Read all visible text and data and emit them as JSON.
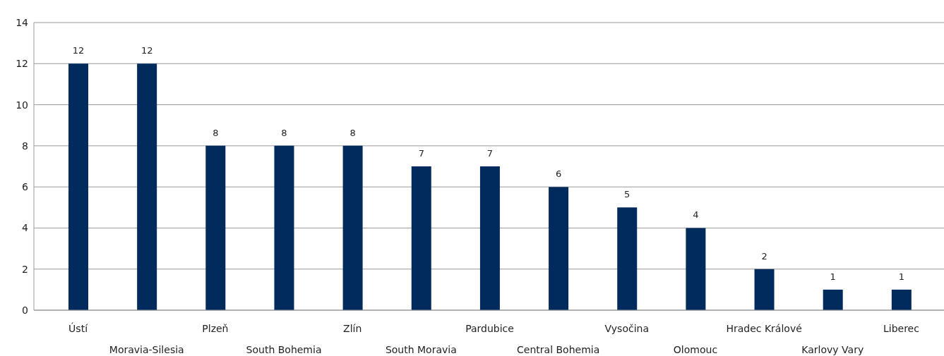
{
  "chart_data": {
    "type": "bar",
    "categories": [
      "Ústí",
      "Moravia-Silesia",
      "Plzeň",
      "South Bohemia",
      "Zlín",
      "South Moravia",
      "Pardubice",
      "Central Bohemia",
      "Vysočina",
      "Olomouc",
      "Hradec Králové",
      "Karlovy Vary",
      "Liberec"
    ],
    "values": [
      12,
      12,
      8,
      8,
      8,
      7,
      7,
      6,
      5,
      4,
      2,
      1,
      1
    ],
    "color": "#002b5c",
    "ylim": [
      0,
      14
    ],
    "yticks": [
      0,
      2,
      4,
      6,
      8,
      10,
      12,
      14
    ],
    "grid": "y",
    "data_labels": true
  }
}
